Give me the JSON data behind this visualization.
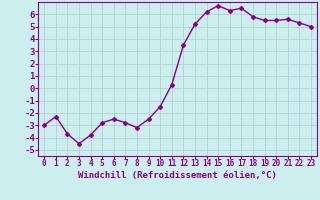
{
  "x": [
    0,
    1,
    2,
    3,
    4,
    5,
    6,
    7,
    8,
    9,
    10,
    11,
    12,
    13,
    14,
    15,
    16,
    17,
    18,
    19,
    20,
    21,
    22,
    23
  ],
  "y": [
    -3.0,
    -2.3,
    -3.7,
    -4.5,
    -3.8,
    -2.8,
    -2.5,
    -2.8,
    -3.2,
    -2.5,
    -1.5,
    0.3,
    3.5,
    5.2,
    6.2,
    6.7,
    6.3,
    6.5,
    5.8,
    5.5,
    5.5,
    5.6,
    5.3,
    5.0
  ],
  "line_color": "#880088",
  "marker": "D",
  "markersize": 2.0,
  "bg_color": "#cceeee",
  "grid_color": "#aacccc",
  "xlabel": "Windchill (Refroidissement éolien,°C)",
  "xlabel_color": "#880088",
  "tick_color": "#880088",
  "ylim": [
    -5.5,
    7.0
  ],
  "xlim": [
    -0.5,
    23.5
  ],
  "yticks": [
    -5,
    -4,
    -3,
    -2,
    -1,
    0,
    1,
    2,
    3,
    4,
    5,
    6
  ],
  "xticks": [
    0,
    1,
    2,
    3,
    4,
    5,
    6,
    7,
    8,
    9,
    10,
    11,
    12,
    13,
    14,
    15,
    16,
    17,
    18,
    19,
    20,
    21,
    22,
    23
  ],
  "tick_fontsize": 5.5,
  "ytick_fontsize": 6.5,
  "xlabel_fontsize": 6.5,
  "font_family": "monospace",
  "linewidth": 1.0
}
